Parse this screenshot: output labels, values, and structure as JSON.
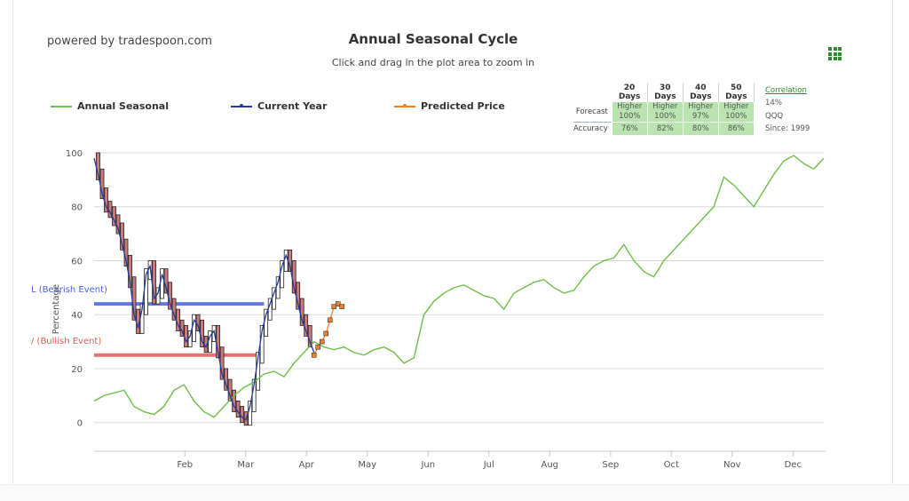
{
  "header": {
    "powered_by": "powered by tradespoon.com",
    "title": "Annual Seasonal Cycle",
    "subtitle": "Click and drag in the plot area to zoom in"
  },
  "menu_icon": "grid-menu-icon",
  "legend": [
    {
      "name": "Annual Seasonal",
      "color": "#6dbf4a"
    },
    {
      "name": "Current Year",
      "color": "#1f3c9e"
    },
    {
      "name": "Predicted Price",
      "color": "#f08030"
    }
  ],
  "forecast_table": {
    "headers": [
      "20 Days",
      "30 Days",
      "40 Days",
      "50 Days"
    ],
    "forecast_label": "Forecast",
    "accuracy_label": "Accuracy",
    "forecast": [
      {
        "dir": "Higher",
        "pct": "100%"
      },
      {
        "dir": "Higher",
        "pct": "100%"
      },
      {
        "dir": "Higher",
        "pct": "97%"
      },
      {
        "dir": "Higher",
        "pct": "100%"
      }
    ],
    "accuracy": [
      "76%",
      "82%",
      "80%",
      "86%"
    ]
  },
  "side_info": {
    "correlation_label": "Correlation",
    "correlation_value": "14%",
    "ticker": "QQQ",
    "since": "Since: 1999"
  },
  "colors": {
    "seasonal": "#6dbf4a",
    "current": "#1f3c9e",
    "predicted": "#f08030",
    "bearish": "#4a5fe0",
    "bullish": "#e05a5a",
    "candle_up": "#ffffff",
    "candle_down": "#c97a7a"
  },
  "chart_data": {
    "type": "line",
    "ylabel": "Percentage",
    "ylim": [
      -8,
      100
    ],
    "yticks": [
      0,
      20,
      40,
      60,
      80,
      100
    ],
    "x_categories": [
      "Feb",
      "Mar",
      "Apr",
      "May",
      "Jun",
      "Jul",
      "Aug",
      "Sep",
      "Oct",
      "Nov",
      "Dec"
    ],
    "xlim": [
      0,
      365
    ],
    "grid": true,
    "legend_position": "top-left",
    "annotations": [
      {
        "label": "L (Bearish Event)",
        "y": 44,
        "x_end": 85
      },
      {
        "label": "/ (Bullish Event)",
        "y": 25,
        "x_end": 85
      }
    ],
    "series": [
      {
        "name": "Annual Seasonal",
        "x": [
          0,
          5,
          10,
          15,
          20,
          25,
          30,
          35,
          40,
          45,
          50,
          55,
          60,
          65,
          70,
          75,
          80,
          85,
          90,
          95,
          100,
          105,
          110,
          115,
          120,
          125,
          130,
          135,
          140,
          145,
          150,
          155,
          160,
          165,
          170,
          175,
          180,
          185,
          190,
          195,
          200,
          205,
          210,
          215,
          220,
          225,
          230,
          235,
          240,
          245,
          250,
          255,
          260,
          265,
          270,
          275,
          280,
          285,
          290,
          295,
          300,
          305,
          310,
          315,
          320,
          325,
          330,
          335,
          340,
          345,
          350,
          355,
          360,
          365
        ],
        "values": [
          8,
          10,
          11,
          12,
          6,
          4,
          3,
          6,
          12,
          14,
          8,
          4,
          2,
          6,
          10,
          13,
          15,
          18,
          19,
          17,
          22,
          26,
          30,
          28,
          27,
          28,
          26,
          25,
          27,
          28,
          26,
          22,
          24,
          40,
          45,
          48,
          50,
          51,
          49,
          47,
          46,
          42,
          48,
          50,
          52,
          53,
          50,
          48,
          49,
          54,
          58,
          60,
          61,
          66,
          60,
          56,
          54,
          60,
          64,
          68,
          72,
          76,
          80,
          91,
          88,
          84,
          80,
          86,
          92,
          97,
          99,
          96,
          94,
          98
        ]
      },
      {
        "name": "Current Year",
        "x": [
          0,
          2,
          4,
          6,
          8,
          10,
          12,
          14,
          16,
          18,
          20,
          22,
          24,
          26,
          28,
          30,
          32,
          34,
          36,
          38,
          40,
          42,
          44,
          46,
          48,
          50,
          52,
          54,
          56,
          58,
          60,
          62,
          64,
          66,
          68,
          70,
          72,
          74,
          76,
          78,
          80,
          82,
          84,
          86,
          88,
          90,
          92,
          94,
          96,
          98,
          100,
          102,
          104,
          106,
          108,
          110
        ],
        "values": [
          98,
          92,
          85,
          80,
          78,
          75,
          72,
          66,
          60,
          52,
          40,
          35,
          42,
          55,
          58,
          46,
          48,
          55,
          50,
          44,
          40,
          36,
          34,
          30,
          32,
          38,
          36,
          30,
          28,
          32,
          34,
          26,
          18,
          14,
          10,
          6,
          4,
          2,
          1,
          6,
          14,
          24,
          34,
          40,
          44,
          48,
          52,
          58,
          62,
          58,
          50,
          44,
          38,
          34,
          30,
          26
        ]
      },
      {
        "name": "Predicted Price",
        "x": [
          110,
          112,
          114,
          116,
          118,
          120,
          122,
          124
        ],
        "values": [
          25,
          28,
          30,
          33,
          38,
          43,
          44,
          43
        ]
      }
    ]
  }
}
